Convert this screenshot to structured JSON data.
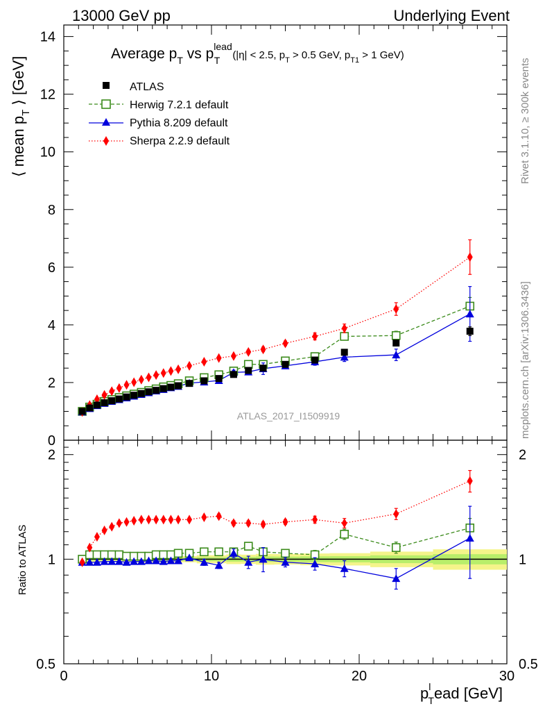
{
  "header": {
    "left": "13000 GeV pp",
    "right": "Underlying Event"
  },
  "side_labels": {
    "rivet": "Rivet 3.1.10, ≥ 300k events",
    "mcplots": "mcplots.cern.ch [arXiv:1306.3436]"
  },
  "watermark": "ATLAS_2017_I1509919",
  "title": {
    "main_a": "Average p",
    "main_sub1": "T",
    "main_b": " vs p",
    "main_sub2": "T",
    "main_sup": "lead",
    "cuts_a": "(|η| < 2.5, p",
    "cuts_sub1": "T",
    "cuts_b": " > 0.5 GeV, p",
    "cuts_sub2": "T1",
    "cuts_c": " > 1 GeV)"
  },
  "axes": {
    "ylabel_a": "⟨ mean p",
    "ylabel_sub": "T",
    "ylabel_b": " ⟩ [GeV]",
    "ratio_ylabel": "Ratio to ATLAS",
    "xlabel_a": "p",
    "xlabel_sub": "T",
    "xlabel_sup": "l",
    "xlabel_b": "ead [GeV]"
  },
  "colors": {
    "atlas": "#000000",
    "herwig": "#3a8a1a",
    "pythia": "#0000dd",
    "sherpa": "#ff0000",
    "band_outer": "#f4f48a",
    "band_inner": "#b8ee6a"
  },
  "chart_data": {
    "type": "scatter",
    "xlim": [
      0,
      30
    ],
    "main_ylim": [
      0,
      14.4
    ],
    "ratio_ylim": [
      0.5,
      2.2
    ],
    "x_ticks": [
      "0",
      "10",
      "20",
      "30"
    ],
    "main_y_ticks": [
      "0",
      "2",
      "4",
      "6",
      "8",
      "10",
      "12",
      "14"
    ],
    "ratio_y_ticks": [
      "0.5",
      "1",
      "2"
    ],
    "legend_position": "top-left",
    "series": [
      {
        "name": "ATLAS",
        "marker": "filled-square",
        "x": [
          1.25,
          1.75,
          2.25,
          2.75,
          3.25,
          3.75,
          4.25,
          4.75,
          5.25,
          5.75,
          6.25,
          6.75,
          7.25,
          7.75,
          8.5,
          9.5,
          10.5,
          11.5,
          12.5,
          13.5,
          15,
          17,
          19,
          22.5,
          27.5
        ],
        "y": [
          1.0,
          1.12,
          1.22,
          1.3,
          1.37,
          1.43,
          1.5,
          1.56,
          1.62,
          1.68,
          1.73,
          1.79,
          1.84,
          1.89,
          1.97,
          2.06,
          2.14,
          2.28,
          2.42,
          2.5,
          2.63,
          2.78,
          3.05,
          3.37,
          3.78
        ],
        "yerr": [
          0.01,
          0.01,
          0.01,
          0.01,
          0.01,
          0.01,
          0.01,
          0.01,
          0.02,
          0.02,
          0.02,
          0.02,
          0.02,
          0.02,
          0.02,
          0.03,
          0.03,
          0.04,
          0.04,
          0.05,
          0.05,
          0.06,
          0.07,
          0.1,
          0.15
        ]
      },
      {
        "name": "Herwig 7.2.1 default",
        "marker": "open-square",
        "line": "dashed",
        "x": [
          1.25,
          1.75,
          2.25,
          2.75,
          3.25,
          3.75,
          4.25,
          4.75,
          5.25,
          5.75,
          6.25,
          6.75,
          7.25,
          7.75,
          8.5,
          9.5,
          10.5,
          11.5,
          12.5,
          13.5,
          15,
          17,
          19,
          22.5,
          27.5
        ],
        "y": [
          1.0,
          1.15,
          1.25,
          1.34,
          1.41,
          1.48,
          1.54,
          1.6,
          1.66,
          1.72,
          1.78,
          1.85,
          1.9,
          1.96,
          2.06,
          2.17,
          2.27,
          2.4,
          2.63,
          2.63,
          2.75,
          2.9,
          3.6,
          3.63,
          4.65
        ],
        "yerr": [
          0.01,
          0.01,
          0.01,
          0.01,
          0.01,
          0.01,
          0.01,
          0.01,
          0.01,
          0.02,
          0.02,
          0.02,
          0.02,
          0.02,
          0.03,
          0.03,
          0.04,
          0.05,
          0.06,
          0.07,
          0.08,
          0.09,
          0.12,
          0.15,
          0.3
        ]
      },
      {
        "name": "Pythia 8.209 default",
        "marker": "filled-triangle",
        "line": "solid",
        "x": [
          1.25,
          1.75,
          2.25,
          2.75,
          3.25,
          3.75,
          4.25,
          4.75,
          5.25,
          5.75,
          6.25,
          6.75,
          7.25,
          7.75,
          8.5,
          9.5,
          10.5,
          11.5,
          12.5,
          13.5,
          15,
          17,
          19,
          22.5,
          27.5
        ],
        "y": [
          0.98,
          1.1,
          1.2,
          1.28,
          1.35,
          1.41,
          1.47,
          1.53,
          1.59,
          1.65,
          1.71,
          1.76,
          1.82,
          1.87,
          1.98,
          2.02,
          2.07,
          2.35,
          2.37,
          2.48,
          2.58,
          2.72,
          2.88,
          2.96,
          4.38
        ],
        "yerr": [
          0.01,
          0.01,
          0.01,
          0.01,
          0.01,
          0.01,
          0.01,
          0.02,
          0.02,
          0.02,
          0.02,
          0.02,
          0.03,
          0.03,
          0.04,
          0.05,
          0.06,
          0.08,
          0.1,
          0.2,
          0.1,
          0.12,
          0.15,
          0.2,
          0.95
        ]
      },
      {
        "name": "Sherpa 2.2.9 default",
        "marker": "filled-diamond",
        "line": "dotted",
        "x": [
          1.25,
          1.75,
          2.25,
          2.75,
          3.25,
          3.75,
          4.25,
          4.75,
          5.25,
          5.75,
          6.25,
          6.75,
          7.25,
          7.75,
          8.5,
          9.5,
          10.5,
          11.5,
          12.5,
          13.5,
          15,
          17,
          19,
          22.5,
          27.5
        ],
        "y": [
          0.98,
          1.22,
          1.42,
          1.57,
          1.7,
          1.81,
          1.92,
          2.01,
          2.1,
          2.18,
          2.26,
          2.33,
          2.4,
          2.46,
          2.58,
          2.72,
          2.85,
          2.92,
          3.06,
          3.15,
          3.36,
          3.6,
          3.88,
          4.55,
          6.35
        ],
        "yerr": [
          0.01,
          0.01,
          0.01,
          0.01,
          0.01,
          0.01,
          0.02,
          0.02,
          0.02,
          0.02,
          0.02,
          0.03,
          0.03,
          0.03,
          0.04,
          0.05,
          0.05,
          0.06,
          0.07,
          0.08,
          0.08,
          0.12,
          0.15,
          0.22,
          0.6
        ]
      }
    ],
    "ratio_series": [
      {
        "name": "Herwig 7.2.1 default",
        "x": [
          1.25,
          1.75,
          2.25,
          2.75,
          3.25,
          3.75,
          4.25,
          4.75,
          5.25,
          5.75,
          6.25,
          6.75,
          7.25,
          7.75,
          8.5,
          9.5,
          10.5,
          11.5,
          12.5,
          13.5,
          15,
          17,
          19,
          22.5,
          27.5
        ],
        "y": [
          1.0,
          1.03,
          1.03,
          1.03,
          1.03,
          1.03,
          1.02,
          1.02,
          1.02,
          1.02,
          1.03,
          1.03,
          1.03,
          1.04,
          1.04,
          1.05,
          1.05,
          1.05,
          1.09,
          1.05,
          1.04,
          1.03,
          1.18,
          1.08,
          1.23
        ],
        "yerr": [
          0.01,
          0.01,
          0.01,
          0.01,
          0.01,
          0.01,
          0.01,
          0.01,
          0.01,
          0.01,
          0.01,
          0.01,
          0.01,
          0.01,
          0.01,
          0.01,
          0.01,
          0.02,
          0.02,
          0.02,
          0.02,
          0.03,
          0.04,
          0.04,
          0.08
        ]
      },
      {
        "name": "Pythia 8.209 default",
        "x": [
          1.25,
          1.75,
          2.25,
          2.75,
          3.25,
          3.75,
          4.25,
          4.75,
          5.25,
          5.75,
          6.25,
          6.75,
          7.25,
          7.75,
          8.5,
          9.5,
          10.5,
          11.5,
          12.5,
          13.5,
          15,
          17,
          19,
          22.5,
          27.5
        ],
        "y": [
          0.98,
          0.98,
          0.98,
          0.985,
          0.985,
          0.985,
          0.98,
          0.985,
          0.985,
          0.99,
          0.99,
          0.985,
          0.99,
          0.99,
          1.01,
          0.98,
          0.96,
          1.04,
          0.98,
          1.0,
          0.98,
          0.97,
          0.94,
          0.88,
          1.15
        ],
        "yerr": [
          0.01,
          0.01,
          0.01,
          0.01,
          0.01,
          0.01,
          0.01,
          0.01,
          0.01,
          0.01,
          0.01,
          0.01,
          0.01,
          0.01,
          0.01,
          0.02,
          0.02,
          0.03,
          0.04,
          0.08,
          0.03,
          0.04,
          0.05,
          0.06,
          0.27
        ]
      },
      {
        "name": "Sherpa 2.2.9 default",
        "x": [
          1.25,
          1.75,
          2.25,
          2.75,
          3.25,
          3.75,
          4.25,
          4.75,
          5.25,
          5.75,
          6.25,
          6.75,
          7.25,
          7.75,
          8.5,
          9.5,
          10.5,
          11.5,
          12.5,
          13.5,
          15,
          17,
          19,
          22.5,
          27.5
        ],
        "y": [
          0.98,
          1.08,
          1.16,
          1.21,
          1.24,
          1.27,
          1.28,
          1.29,
          1.3,
          1.3,
          1.3,
          1.3,
          1.3,
          1.3,
          1.3,
          1.32,
          1.33,
          1.27,
          1.27,
          1.26,
          1.28,
          1.3,
          1.27,
          1.35,
          1.68
        ],
        "yerr": [
          0.01,
          0.01,
          0.01,
          0.01,
          0.01,
          0.01,
          0.01,
          0.01,
          0.01,
          0.01,
          0.01,
          0.01,
          0.01,
          0.01,
          0.01,
          0.01,
          0.02,
          0.02,
          0.02,
          0.02,
          0.02,
          0.03,
          0.04,
          0.05,
          0.12
        ]
      }
    ]
  }
}
